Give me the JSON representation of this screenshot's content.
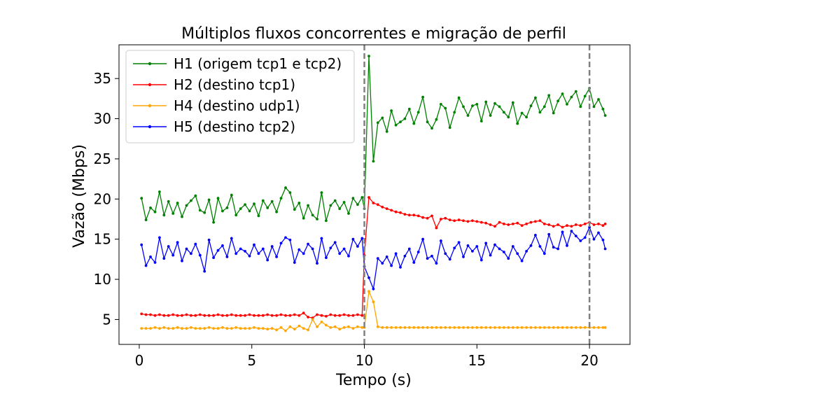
{
  "chart_data": {
    "type": "line",
    "title": "Múltiplos fluxos concorrentes e migração de perfil",
    "xlabel": "Tempo (s)",
    "ylabel": "Vazão (Mbps)",
    "xlim": [
      -0.9,
      21.8
    ],
    "ylim": [
      1.9,
      39.2
    ],
    "xticks": [
      0,
      5,
      10,
      15,
      20
    ],
    "yticks": [
      5,
      10,
      15,
      20,
      25,
      30,
      35
    ],
    "grid": false,
    "legend_position": "top-left",
    "vlines": [
      10,
      20
    ],
    "vline_style": "dashed",
    "vline_color": "#808080",
    "series": [
      {
        "name": "H1 (origem tcp1 e tcp2)",
        "color": "#008000",
        "x": [
          0.1,
          0.3,
          0.5,
          0.7,
          0.9,
          1.1,
          1.3,
          1.5,
          1.7,
          1.9,
          2.1,
          2.3,
          2.5,
          2.7,
          2.9,
          3.1,
          3.3,
          3.5,
          3.7,
          3.9,
          4.1,
          4.3,
          4.5,
          4.7,
          4.9,
          5.1,
          5.3,
          5.5,
          5.7,
          5.9,
          6.1,
          6.3,
          6.5,
          6.7,
          6.9,
          7.1,
          7.3,
          7.5,
          7.7,
          7.9,
          8.1,
          8.3,
          8.5,
          8.7,
          8.9,
          9.1,
          9.3,
          9.5,
          9.7,
          9.9,
          10.0,
          10.2,
          10.4,
          10.6,
          10.8,
          11.0,
          11.2,
          11.4,
          11.6,
          11.8,
          12.0,
          12.2,
          12.4,
          12.6,
          12.8,
          13.0,
          13.2,
          13.4,
          13.6,
          13.8,
          14.0,
          14.2,
          14.4,
          14.6,
          14.8,
          15.0,
          15.2,
          15.4,
          15.6,
          15.8,
          16.0,
          16.2,
          16.4,
          16.6,
          16.8,
          17.0,
          17.2,
          17.4,
          17.6,
          17.8,
          18.0,
          18.2,
          18.4,
          18.6,
          18.8,
          19.0,
          19.2,
          19.4,
          19.6,
          19.8,
          20.0,
          20.2,
          20.4,
          20.6,
          20.7
        ],
        "values": [
          20.1,
          17.4,
          18.9,
          18.4,
          20.9,
          18.0,
          19.7,
          18.2,
          19.5,
          17.8,
          19.2,
          19.8,
          20.4,
          18.6,
          18.3,
          19.9,
          17.1,
          20.1,
          18.5,
          18.9,
          20.5,
          18.0,
          18.8,
          19.3,
          18.5,
          19.4,
          17.9,
          19.8,
          18.9,
          19.7,
          18.4,
          20.1,
          21.4,
          20.8,
          18.7,
          19.5,
          17.6,
          19.2,
          18.0,
          17.5,
          20.8,
          17.3,
          19.2,
          19.8,
          18.8,
          19.6,
          18.2,
          20.1,
          19.3,
          20.2,
          18.8,
          37.8,
          24.7,
          29.5,
          30.1,
          28.4,
          31.0,
          29.2,
          29.6,
          30.0,
          31.2,
          29.4,
          30.8,
          32.7,
          29.6,
          28.8,
          29.9,
          31.8,
          31.3,
          28.9,
          30.8,
          32.6,
          31.5,
          30.4,
          31.6,
          31.8,
          29.7,
          32.1,
          30.4,
          31.9,
          31.5,
          30.8,
          30.2,
          32.0,
          29.4,
          30.7,
          30.2,
          31.6,
          32.6,
          30.8,
          31.5,
          32.9,
          30.7,
          32.2,
          33.1,
          31.8,
          32.7,
          33.4,
          31.5,
          32.8,
          33.8,
          31.5,
          32.4,
          31.2,
          30.4
        ]
      },
      {
        "name": "H2 (destino tcp1)",
        "color": "#ff0000",
        "x": [
          0.1,
          0.3,
          0.5,
          0.7,
          0.9,
          1.1,
          1.3,
          1.5,
          1.7,
          1.9,
          2.1,
          2.3,
          2.5,
          2.7,
          2.9,
          3.1,
          3.3,
          3.5,
          3.7,
          3.9,
          4.1,
          4.3,
          4.5,
          4.7,
          4.9,
          5.1,
          5.3,
          5.5,
          5.7,
          5.9,
          6.1,
          6.3,
          6.5,
          6.7,
          6.9,
          7.1,
          7.3,
          7.5,
          7.7,
          7.9,
          8.1,
          8.3,
          8.5,
          8.7,
          8.9,
          9.1,
          9.3,
          9.5,
          9.7,
          9.9,
          10.0,
          10.2,
          10.4,
          10.6,
          10.8,
          11.0,
          11.2,
          11.4,
          11.6,
          11.8,
          12.0,
          12.2,
          12.4,
          12.6,
          12.8,
          13.0,
          13.2,
          13.4,
          13.6,
          13.8,
          14.0,
          14.2,
          14.4,
          14.6,
          14.8,
          15.0,
          15.2,
          15.4,
          15.6,
          15.8,
          16.0,
          16.2,
          16.4,
          16.6,
          16.8,
          17.0,
          17.2,
          17.4,
          17.6,
          17.8,
          18.0,
          18.2,
          18.4,
          18.6,
          18.8,
          19.0,
          19.2,
          19.4,
          19.6,
          19.8,
          20.0,
          20.2,
          20.4,
          20.6,
          20.7
        ],
        "values": [
          5.7,
          5.6,
          5.6,
          5.5,
          5.6,
          5.5,
          5.5,
          5.6,
          5.5,
          5.5,
          5.6,
          5.5,
          5.5,
          5.6,
          5.5,
          5.5,
          5.5,
          5.6,
          5.5,
          5.5,
          5.6,
          5.5,
          5.5,
          5.5,
          5.6,
          5.5,
          5.5,
          5.5,
          5.6,
          5.5,
          5.5,
          5.6,
          5.5,
          5.5,
          5.6,
          5.5,
          5.8,
          5.3,
          5.2,
          5.6,
          5.5,
          5.4,
          5.6,
          5.5,
          5.5,
          5.6,
          5.5,
          5.5,
          5.6,
          5.5,
          13.0,
          20.2,
          19.5,
          19.3,
          19.0,
          18.8,
          18.6,
          18.4,
          18.3,
          18.1,
          18.0,
          18.0,
          17.9,
          17.7,
          17.6,
          17.9,
          16.4,
          17.5,
          17.6,
          17.4,
          17.3,
          17.4,
          17.3,
          17.2,
          17.3,
          17.2,
          17.1,
          17.0,
          16.8,
          16.6,
          17.1,
          16.9,
          16.8,
          16.9,
          17.0,
          16.7,
          16.9,
          17.1,
          17.2,
          17.3,
          16.9,
          16.8,
          16.6,
          16.8,
          16.5,
          16.7,
          16.6,
          16.8,
          16.7,
          16.9,
          17.1,
          16.8,
          16.9,
          16.7,
          16.9
        ]
      },
      {
        "name": "H4 (destino udp1)",
        "color": "#ffa500",
        "x": [
          0.1,
          0.3,
          0.5,
          0.7,
          0.9,
          1.1,
          1.3,
          1.5,
          1.7,
          1.9,
          2.1,
          2.3,
          2.5,
          2.7,
          2.9,
          3.1,
          3.3,
          3.5,
          3.7,
          3.9,
          4.1,
          4.3,
          4.5,
          4.7,
          4.9,
          5.1,
          5.3,
          5.5,
          5.7,
          5.9,
          6.1,
          6.3,
          6.5,
          6.7,
          6.9,
          7.1,
          7.3,
          7.5,
          7.7,
          7.9,
          8.1,
          8.3,
          8.5,
          8.7,
          8.9,
          9.1,
          9.3,
          9.5,
          9.7,
          9.9,
          10.0,
          10.2,
          10.4,
          10.6,
          10.8,
          11.0,
          11.2,
          11.4,
          11.6,
          11.8,
          12.0,
          12.2,
          12.4,
          12.6,
          12.8,
          13.0,
          13.2,
          13.4,
          13.6,
          13.8,
          14.0,
          14.2,
          14.4,
          14.6,
          14.8,
          15.0,
          15.2,
          15.4,
          15.6,
          15.8,
          16.0,
          16.2,
          16.4,
          16.6,
          16.8,
          17.0,
          17.2,
          17.4,
          17.6,
          17.8,
          18.0,
          18.2,
          18.4,
          18.6,
          18.8,
          19.0,
          19.2,
          19.4,
          19.6,
          19.8,
          20.0,
          20.2,
          20.4,
          20.6,
          20.7
        ],
        "values": [
          3.9,
          3.9,
          3.9,
          4.0,
          3.9,
          4.0,
          3.9,
          3.9,
          4.0,
          3.9,
          3.9,
          4.0,
          3.9,
          3.9,
          3.9,
          4.0,
          3.9,
          3.9,
          4.0,
          3.9,
          3.9,
          4.0,
          3.9,
          3.9,
          3.9,
          4.0,
          3.9,
          3.9,
          3.8,
          3.9,
          3.7,
          4.0,
          3.6,
          4.1,
          3.8,
          4.2,
          3.9,
          3.7,
          5.0,
          4.1,
          4.7,
          4.3,
          4.0,
          4.1,
          3.8,
          4.0,
          4.1,
          3.9,
          4.1,
          4.0,
          4.0,
          8.5,
          7.2,
          4.1,
          4.0,
          4.0,
          4.0,
          4.0,
          4.0,
          4.0,
          4.0,
          4.0,
          4.0,
          4.0,
          4.0,
          4.0,
          4.0,
          4.0,
          4.0,
          4.0,
          4.0,
          4.0,
          4.0,
          4.0,
          4.0,
          4.0,
          4.0,
          4.0,
          4.0,
          4.0,
          4.0,
          4.0,
          4.0,
          4.0,
          4.0,
          4.0,
          4.0,
          4.0,
          4.0,
          4.0,
          4.0,
          4.0,
          4.0,
          4.0,
          4.0,
          4.0,
          4.0,
          4.0,
          4.0,
          4.0,
          4.0,
          4.0,
          4.0,
          4.0,
          4.0
        ]
      },
      {
        "name": "H5 (destino tcp2)",
        "color": "#0000ff",
        "x": [
          0.1,
          0.3,
          0.5,
          0.7,
          0.9,
          1.1,
          1.3,
          1.5,
          1.7,
          1.9,
          2.1,
          2.3,
          2.5,
          2.7,
          2.9,
          3.1,
          3.3,
          3.5,
          3.7,
          3.9,
          4.1,
          4.3,
          4.5,
          4.7,
          4.9,
          5.1,
          5.3,
          5.5,
          5.7,
          5.9,
          6.1,
          6.3,
          6.5,
          6.7,
          6.9,
          7.1,
          7.3,
          7.5,
          7.7,
          7.9,
          8.1,
          8.3,
          8.5,
          8.7,
          8.9,
          9.1,
          9.3,
          9.5,
          9.7,
          9.9,
          10.0,
          10.2,
          10.4,
          10.6,
          10.8,
          11.0,
          11.2,
          11.4,
          11.6,
          11.8,
          12.0,
          12.2,
          12.4,
          12.6,
          12.8,
          13.0,
          13.2,
          13.4,
          13.6,
          13.8,
          14.0,
          14.2,
          14.4,
          14.6,
          14.8,
          15.0,
          15.2,
          15.4,
          15.6,
          15.8,
          16.0,
          16.2,
          16.4,
          16.6,
          16.8,
          17.0,
          17.2,
          17.4,
          17.6,
          17.8,
          18.0,
          18.2,
          18.4,
          18.6,
          18.8,
          19.0,
          19.2,
          19.4,
          19.6,
          19.8,
          20.0,
          20.2,
          20.4,
          20.6,
          20.7
        ],
        "values": [
          14.3,
          11.7,
          12.8,
          12.1,
          15.2,
          12.6,
          14.1,
          13.0,
          14.6,
          12.3,
          13.8,
          13.2,
          14.4,
          13.0,
          11.0,
          14.9,
          12.7,
          13.6,
          14.2,
          12.8,
          15.1,
          13.2,
          13.8,
          13.5,
          12.9,
          14.3,
          13.2,
          13.8,
          12.4,
          14.1,
          12.8,
          14.5,
          15.2,
          14.9,
          12.1,
          13.7,
          13.2,
          14.4,
          13.8,
          12.0,
          15.1,
          12.7,
          13.9,
          14.6,
          13.2,
          13.8,
          12.9,
          15.0,
          14.1,
          15.1,
          11.6,
          10.2,
          8.8,
          12.6,
          12.0,
          12.8,
          11.7,
          13.2,
          11.5,
          12.9,
          13.8,
          12.1,
          13.4,
          15.0,
          12.6,
          12.9,
          12.0,
          14.8,
          13.2,
          12.5,
          13.9,
          14.6,
          12.8,
          14.2,
          13.5,
          14.1,
          12.4,
          14.5,
          13.0,
          14.3,
          13.8,
          13.4,
          12.6,
          14.1,
          13.2,
          12.3,
          13.5,
          14.2,
          15.5,
          14.1,
          13.2,
          15.6,
          14.0,
          13.8,
          15.9,
          14.2,
          16.0,
          15.4,
          14.8,
          15.2,
          16.5,
          15.0,
          15.8,
          14.9,
          13.8
        ]
      }
    ]
  }
}
